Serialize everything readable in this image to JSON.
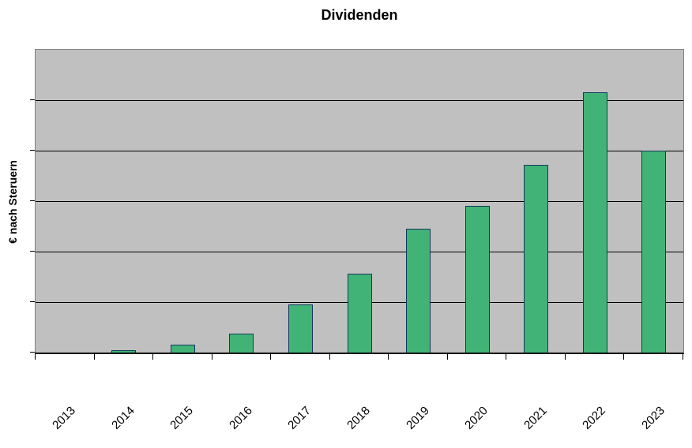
{
  "chart_data": {
    "type": "bar",
    "title": "Dividenden",
    "xlabel": "",
    "ylabel": "€ nach Steruern",
    "categories": [
      "2013",
      "2014",
      "2015",
      "2016",
      "2017",
      "2018",
      "2019",
      "2020",
      "2021",
      "2022",
      "2023"
    ],
    "values": [
      0,
      0.05,
      0.16,
      0.38,
      0.95,
      1.56,
      2.46,
      2.91,
      3.72,
      5.15,
      4.0
    ],
    "ylim": [
      0,
      6
    ],
    "y_axis_numeric_labels_visible": false,
    "value_units": "relative units; horizontal gridline spacing = 1 unit, no numeric tick labels shown in chart",
    "gridlines": "6 horizontal intervals (5 internal gridlines), vertical grid off",
    "legend_position": "none",
    "x_tick_label_rotation_deg": 45,
    "colors": {
      "bar_fill": "#41b376",
      "bar_border": "#16365c",
      "plot_background": "#c0c0c0",
      "plot_border": "#808080",
      "gridline": "#000000",
      "axis_line": "#000000",
      "text": "#000000",
      "page_background": "#ffffff"
    }
  }
}
